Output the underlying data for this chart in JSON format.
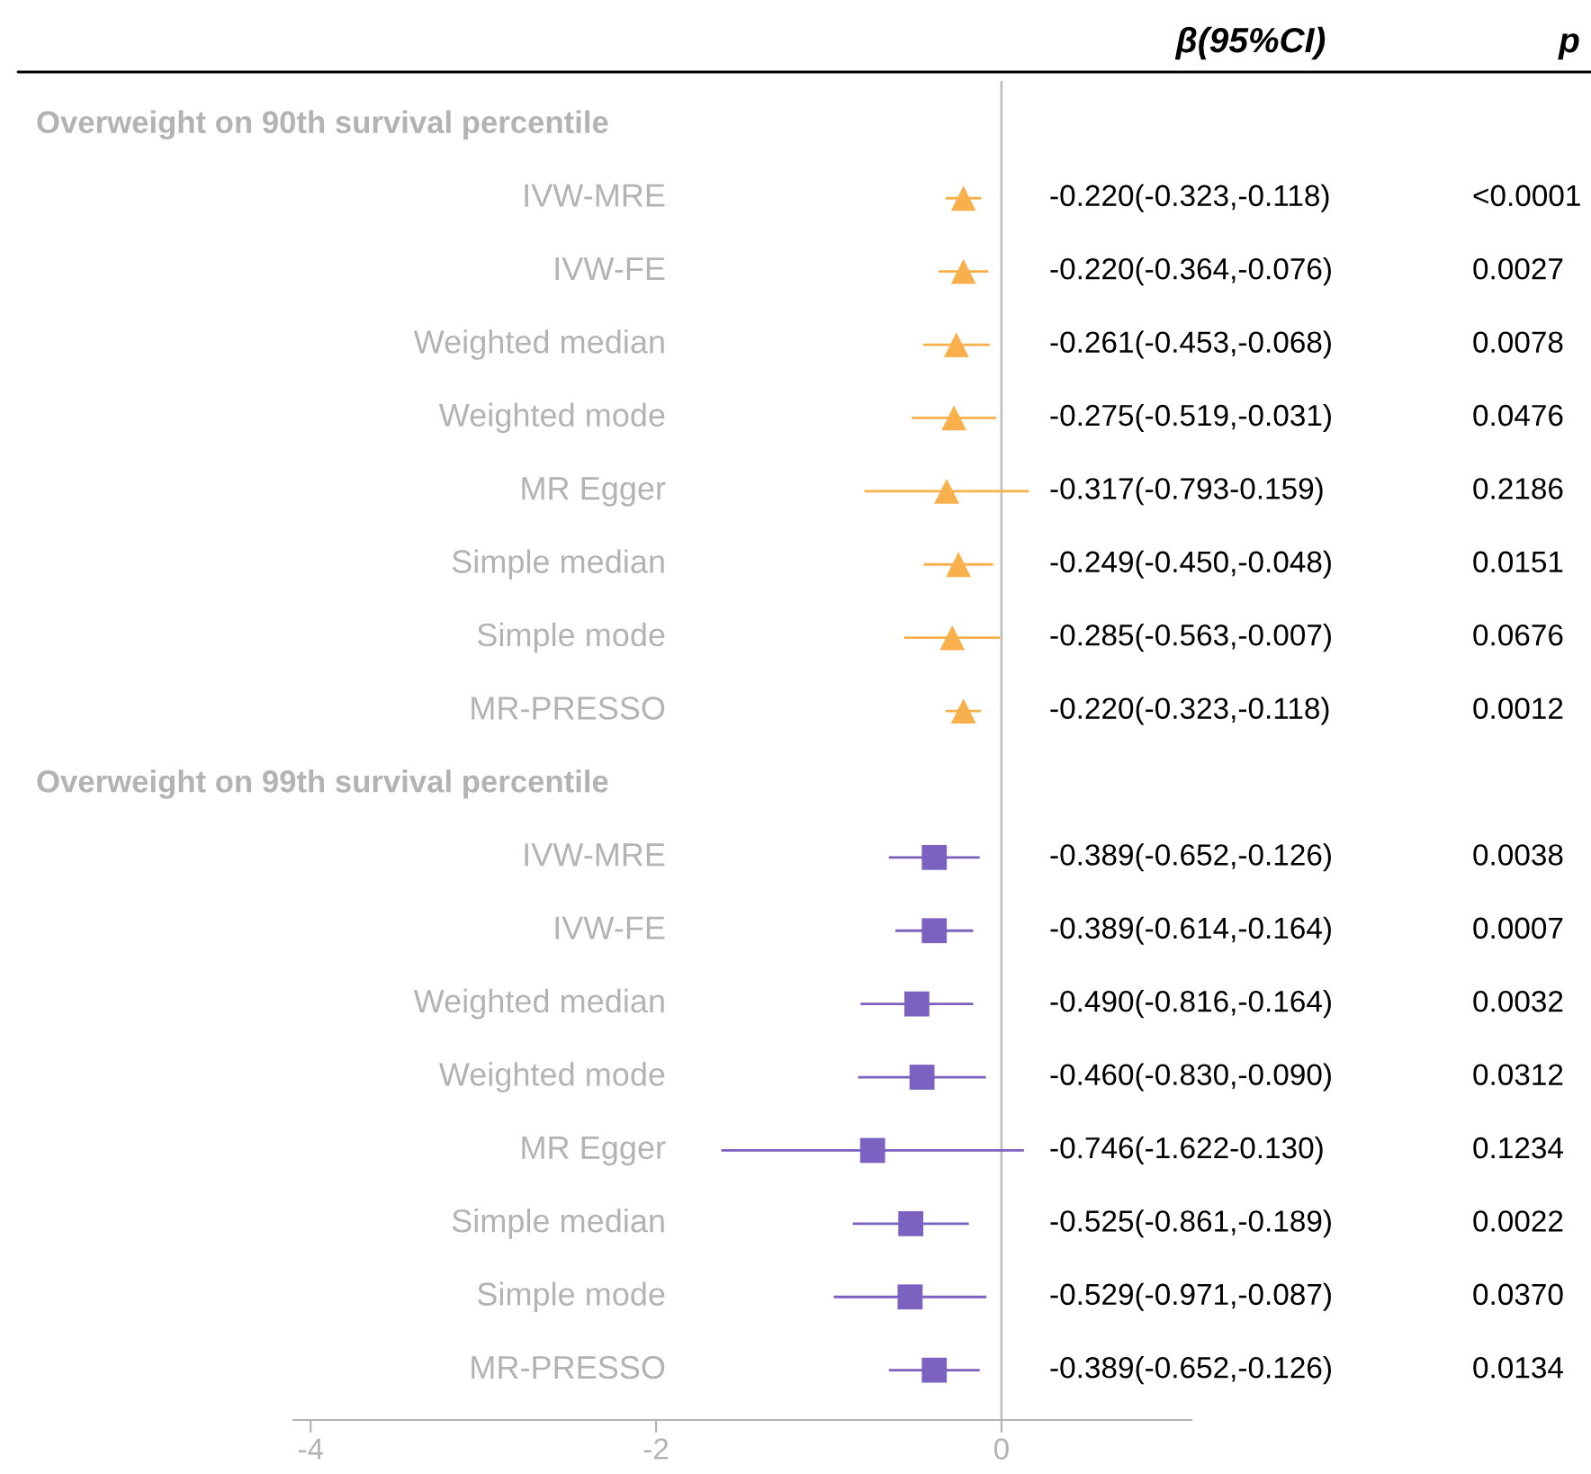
{
  "chart_data": {
    "type": "scatter",
    "orientation": "horizontal",
    "categories": [
      "Overweight on 90th survival percentile",
      "IVW-MRE",
      "IVW-FE",
      "Weighted median",
      "Weighted mode",
      "MR Egger",
      "Simple median",
      "Simple mode",
      "MR-PRESSO",
      "Overweight on 99th survival percentile",
      "IVW-MRE",
      "IVW-FE",
      "Weighted median",
      "Weighted mode",
      "MR Egger",
      "Simple median",
      "Simple mode",
      "MR-PRESSO"
    ],
    "series": [
      {
        "color": "#f8b04c",
        "marker": "triangle",
        "values": [
          null,
          -0.22,
          -0.22,
          -0.261,
          -0.275,
          -0.317,
          -0.249,
          -0.285,
          -0.22,
          null,
          null,
          null,
          null,
          null,
          null,
          null,
          null,
          null
        ],
        "errors": [
          null,
          [
            -0.323,
            -0.118
          ],
          [
            -0.364,
            -0.076
          ],
          [
            -0.453,
            -0.068
          ],
          [
            -0.519,
            -0.031
          ],
          [
            -0.793,
            0.159
          ],
          [
            -0.45,
            -0.048
          ],
          [
            -0.563,
            -0.007
          ],
          [
            -0.323,
            -0.118
          ],
          null,
          null,
          null,
          null,
          null,
          null,
          null,
          null,
          null
        ]
      },
      {
        "color": "#7b62c0",
        "marker": "square",
        "values": [
          null,
          null,
          null,
          null,
          null,
          null,
          null,
          null,
          null,
          null,
          -0.389,
          -0.389,
          -0.49,
          -0.46,
          -0.746,
          -0.525,
          -0.529,
          -0.389
        ],
        "errors": [
          null,
          null,
          null,
          null,
          null,
          null,
          null,
          null,
          null,
          null,
          [
            -0.652,
            -0.126
          ],
          [
            -0.614,
            -0.164
          ],
          [
            -0.816,
            -0.164
          ],
          [
            -0.83,
            -0.09
          ],
          [
            -1.622,
            0.13
          ],
          [
            -0.861,
            -0.189
          ],
          [
            -0.971,
            -0.087
          ],
          [
            -0.652,
            -0.126
          ]
        ]
      }
    ],
    "annotations": [
      "β(95%CI)",
      "p",
      "-0.220(-0.323,-0.118)",
      "<0.0001",
      "-0.220(-0.364,-0.076)",
      "0.0027",
      "-0.261(-0.453,-0.068)",
      "0.0078",
      "-0.275(-0.519,-0.031)",
      "0.0476",
      "-0.317(-0.793-0.159)",
      "0.2186",
      "-0.249(-0.450,-0.048)",
      "0.0151",
      "-0.285(-0.563,-0.007)",
      "0.0676",
      "-0.220(-0.323,-0.118)",
      "0.0012",
      "-0.389(-0.652,-0.126)",
      "0.0038",
      "-0.389(-0.614,-0.164)",
      "0.0007",
      "-0.490(-0.816,-0.164)",
      "0.0032",
      "-0.460(-0.830,-0.090)",
      "0.0312",
      "-0.746(-1.622-0.130)",
      "0.1234",
      "-0.525(-0.861,-0.189)",
      "0.0022",
      "-0.529(-0.971,-0.087)",
      "0.0370",
      "-0.389(-0.652,-0.126)",
      "0.0134"
    ],
    "xlim": [
      -4.1,
      1.1
    ],
    "xticks": [
      -4,
      -2,
      0
    ],
    "ref_lines": [
      {
        "axis": "x",
        "value": 0,
        "color": "#c0c0c0"
      }
    ],
    "grid": false,
    "legend": false,
    "tick_labels": "x"
  }
}
